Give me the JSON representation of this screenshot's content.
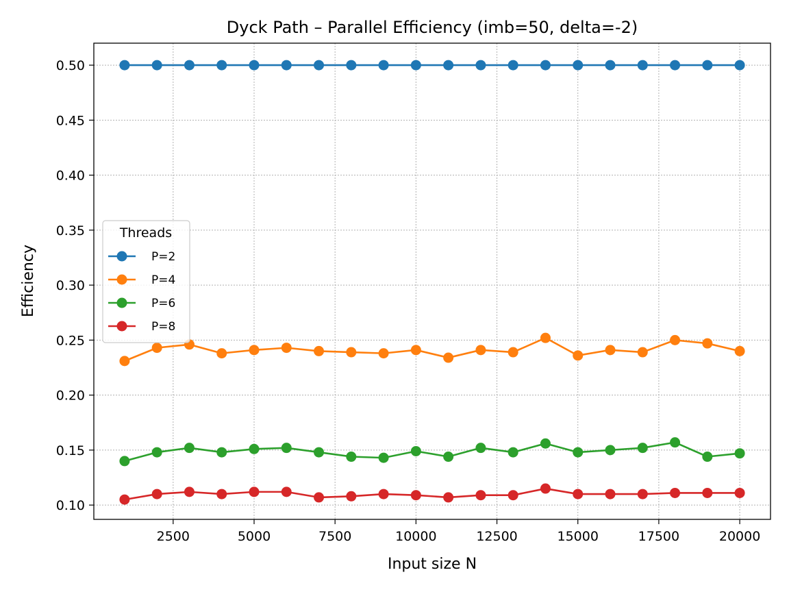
{
  "chart_data": {
    "type": "line",
    "title": "Dyck Path – Parallel Efficiency (imb=50, delta=-2)",
    "xlabel": "Input size N",
    "ylabel": "Efficiency",
    "xlim": [
      50,
      20950
    ],
    "ylim": [
      0.087,
      0.52
    ],
    "xticks": [
      2500,
      5000,
      7500,
      10000,
      12500,
      15000,
      17500,
      20000
    ],
    "yticks": [
      0.1,
      0.15,
      0.2,
      0.25,
      0.3,
      0.35,
      0.4,
      0.45,
      0.5
    ],
    "grid": true,
    "legend": {
      "title": "Threads",
      "placement": "center-left"
    },
    "x": [
      1000,
      2000,
      3000,
      4000,
      5000,
      6000,
      7000,
      8000,
      9000,
      10000,
      11000,
      12000,
      13000,
      14000,
      15000,
      16000,
      17000,
      18000,
      19000,
      20000
    ],
    "series": [
      {
        "name": "P=2",
        "color": "#1f77b4",
        "values": [
          0.5,
          0.5,
          0.5,
          0.5,
          0.5,
          0.5,
          0.5,
          0.5,
          0.5,
          0.5,
          0.5,
          0.5,
          0.5,
          0.5,
          0.5,
          0.5,
          0.5,
          0.5,
          0.5,
          0.5
        ]
      },
      {
        "name": "P=4",
        "color": "#ff7f0e",
        "values": [
          0.231,
          0.243,
          0.246,
          0.238,
          0.241,
          0.243,
          0.24,
          0.239,
          0.238,
          0.241,
          0.234,
          0.241,
          0.239,
          0.252,
          0.236,
          0.241,
          0.239,
          0.25,
          0.247,
          0.24
        ]
      },
      {
        "name": "P=6",
        "color": "#2ca02c",
        "values": [
          0.14,
          0.148,
          0.152,
          0.148,
          0.151,
          0.152,
          0.148,
          0.144,
          0.143,
          0.149,
          0.144,
          0.152,
          0.148,
          0.156,
          0.148,
          0.15,
          0.152,
          0.157,
          0.144,
          0.147
        ]
      },
      {
        "name": "P=8",
        "color": "#d62728",
        "values": [
          0.105,
          0.11,
          0.112,
          0.11,
          0.112,
          0.112,
          0.107,
          0.108,
          0.11,
          0.109,
          0.107,
          0.109,
          0.109,
          0.115,
          0.11,
          0.11,
          0.11,
          0.111,
          0.111,
          0.111
        ]
      }
    ]
  }
}
